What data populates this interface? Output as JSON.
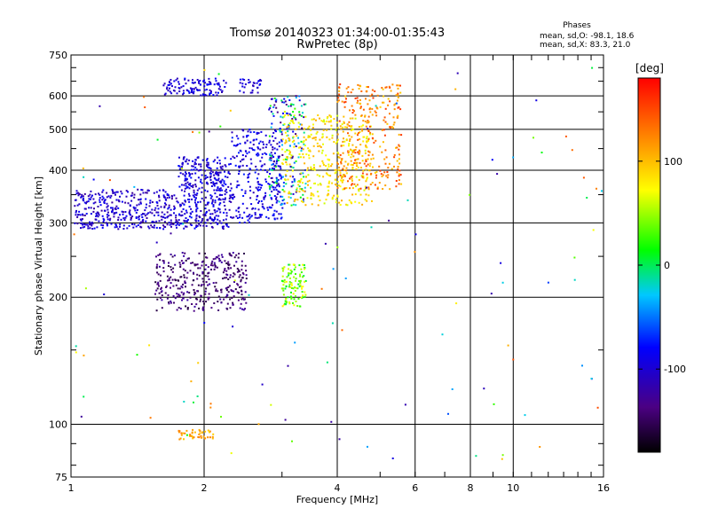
{
  "chart_data": {
    "type": "scatter",
    "title": "Tromsø 20140323 01:34:00-01:35:43",
    "subtitle": "RwPretec (8p)",
    "xlabel": "Frequency [MHz]",
    "ylabel": "Stationary phase Virtual Height [km]",
    "x_scale": "log",
    "y_scale": "log",
    "xlim": [
      1,
      16
    ],
    "ylim": [
      75,
      750
    ],
    "x_ticks": [
      1,
      2,
      4,
      6,
      8,
      10,
      16
    ],
    "x_tick_labels": [
      "1",
      "2",
      "4",
      "6",
      "8",
      "10",
      "16"
    ],
    "y_ticks": [
      75,
      100,
      200,
      300,
      400,
      500,
      600,
      750
    ],
    "y_tick_labels": [
      "75",
      "100",
      "200",
      "300",
      "400",
      "500",
      "600",
      "750"
    ],
    "grid": true,
    "colorbar": {
      "label": "[deg]",
      "range": [
        -180,
        180
      ],
      "ticks": [
        100,
        0,
        -100
      ],
      "tick_labels": [
        "100",
        "0",
        "-100"
      ]
    },
    "legend": {
      "title": "Phases",
      "lines": [
        "mean, sd,O: -98.1, 18.6",
        "mean, sd,X:  83.3, 21.0"
      ],
      "placement": "top-right"
    },
    "clusters": [
      {
        "x": [
          1.02,
          1.75
        ],
        "y": [
          290,
          360
        ],
        "phase": [
          -125,
          -80
        ],
        "n": 380
      },
      {
        "x": [
          1.75,
          2.3
        ],
        "y": [
          290,
          430
        ],
        "phase": [
          -120,
          -75
        ],
        "n": 380
      },
      {
        "x": [
          2.3,
          3.0
        ],
        "y": [
          300,
          500
        ],
        "phase": [
          -115,
          -70
        ],
        "n": 260
      },
      {
        "x": [
          2.8,
          3.4
        ],
        "y": [
          330,
          600
        ],
        "phase": [
          -140,
          30
        ],
        "n": 200
      },
      {
        "x": [
          3.0,
          4.8
        ],
        "y": [
          330,
          540
        ],
        "phase": [
          60,
          110
        ],
        "n": 380
      },
      {
        "x": [
          4.0,
          5.6
        ],
        "y": [
          360,
          640
        ],
        "phase": [
          90,
          160
        ],
        "n": 300
      },
      {
        "x": [
          1.62,
          2.25
        ],
        "y": [
          600,
          660
        ],
        "phase": [
          -115,
          -75
        ],
        "n": 110
      },
      {
        "x": [
          2.4,
          2.7
        ],
        "y": [
          610,
          660
        ],
        "phase": [
          -110,
          -80
        ],
        "n": 30
      },
      {
        "x": [
          1.55,
          2.5
        ],
        "y": [
          185,
          255
        ],
        "phase": [
          -160,
          -120
        ],
        "n": 340
      },
      {
        "x": [
          3.0,
          3.4
        ],
        "y": [
          190,
          240
        ],
        "phase": [
          0,
          80
        ],
        "n": 110
      },
      {
        "x": [
          1.75,
          2.1
        ],
        "y": [
          92,
          97
        ],
        "phase": [
          90,
          130
        ],
        "n": 45
      },
      {
        "x": [
          1.0,
          16.0
        ],
        "y": [
          80,
          700
        ],
        "phase": [
          -130,
          150
        ],
        "n": 120
      }
    ]
  }
}
